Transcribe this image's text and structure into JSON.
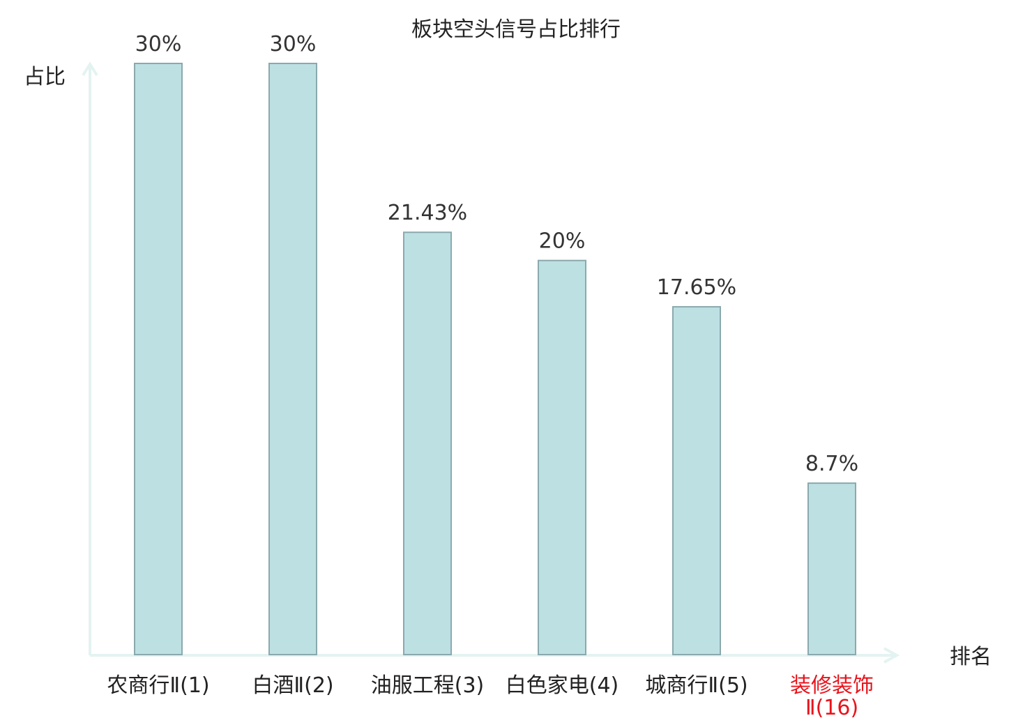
{
  "chart_data": {
    "type": "bar",
    "title": "板块空头信号占比排行",
    "xlabel": "排名",
    "ylabel": "占比",
    "categories": [
      [
        "农商行Ⅱ(1)"
      ],
      [
        "白酒Ⅱ(2)"
      ],
      [
        "油服工程(3)"
      ],
      [
        "白色家电(4)"
      ],
      [
        "城商行Ⅱ(5)"
      ],
      [
        "装修装饰",
        "Ⅱ(16)"
      ]
    ],
    "category_colors": [
      "#222222",
      "#222222",
      "#222222",
      "#222222",
      "#222222",
      "#e8141c"
    ],
    "values": [
      30,
      30,
      21.43,
      20,
      17.65,
      8.7
    ],
    "value_labels": [
      "30%",
      "30%",
      "21.43%",
      "20%",
      "17.65%",
      "8.7%"
    ],
    "ylim": [
      0,
      30
    ],
    "grid": false,
    "legend": "none",
    "colors": {
      "bar_fill": "#bde0e3",
      "bar_stroke": "#8aa9ad",
      "axis": "#e3f3f1",
      "highlight": "#e8141c"
    }
  }
}
